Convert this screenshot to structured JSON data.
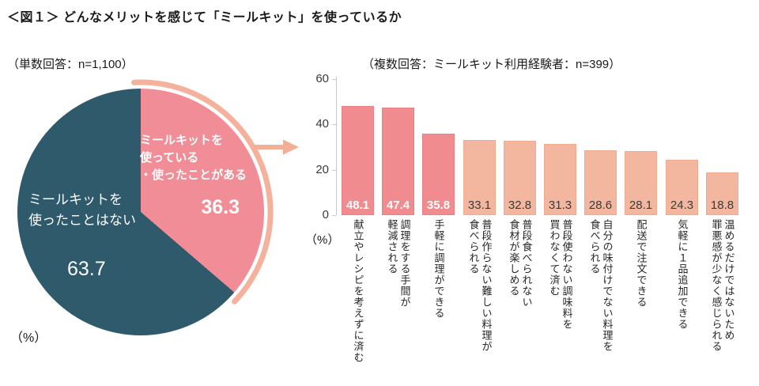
{
  "page": {
    "title": "＜図１＞ どんなメリットを感じて「ミールキット」を使っているか"
  },
  "decor": {
    "arrow_color": "#f2ae97",
    "arc_color": "#f4b29c",
    "axis_color": "#c9c9c9"
  },
  "chart_data": [
    {
      "type": "pie",
      "note": "（単数回答：n=1,100）",
      "unit": "（%）",
      "start_angle_deg": 0,
      "direction": "clockwise",
      "slices": [
        {
          "label": "ミールキットを使っている・使ったことがある",
          "label_lines": "ミールキットを\n使っている\n・使ったことがある",
          "value": 36.3,
          "color": "#f08d97",
          "text_color": "#ffffff",
          "highlight_arc": true
        },
        {
          "label": "ミールキットを使ったことはない",
          "label_lines": "ミールキットを\n使ったことはない",
          "value": 63.7,
          "color": "#2e5a6c",
          "text_color": "#ffffff",
          "highlight_arc": false
        }
      ]
    },
    {
      "type": "bar",
      "note": "（複数回答：ミールキット利用経験者：n=399）",
      "unit": "（%）",
      "ylim": [
        0,
        60
      ],
      "yticks": [
        0,
        20,
        40,
        60
      ],
      "grid": false,
      "highlighted_count": 3,
      "bar_colors": {
        "highlighted": "#f08b8f",
        "highlighted_border": "#e97f87",
        "normal": "#f3b7a0",
        "normal_border": "#efab92"
      },
      "value_label_colors": {
        "highlighted": "#ffffff",
        "normal": "#3a3a3a"
      },
      "categories": [
        "献立やレシピを考えずに済む",
        "調理をする手間が\n軽減される",
        "手軽に調理ができる",
        "普段作らない難しい料理が\n食べられる",
        "普段食べられない\n食材が楽しめる",
        "普段使わない調味料を\n買わなくて済む",
        "自分の味付けでない料理を\n食べられる",
        "配送で注文できる",
        "気軽に１品追加できる",
        "温めるだけではないため\n罪悪感が少なく感じられる"
      ],
      "values": [
        48.1,
        47.4,
        35.8,
        33.1,
        32.8,
        31.3,
        28.6,
        28.1,
        24.3,
        18.8
      ]
    }
  ]
}
